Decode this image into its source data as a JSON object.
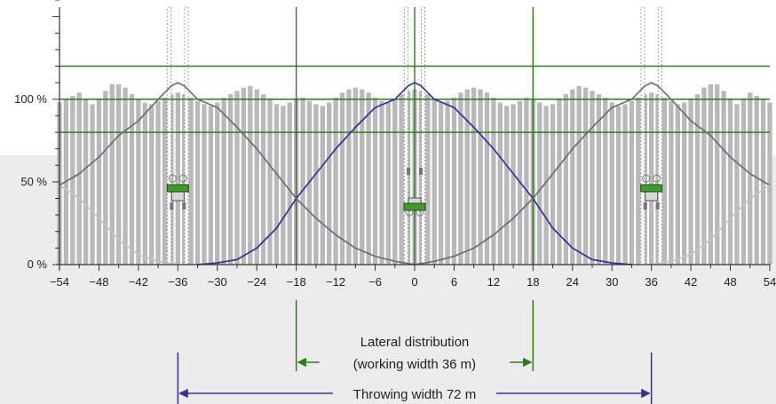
{
  "chart_data": {
    "type": "line",
    "title": "",
    "x_ticks": [
      -54,
      -48,
      -42,
      -36,
      -30,
      -24,
      -18,
      -12,
      -6,
      0,
      6,
      12,
      18,
      24,
      30,
      36,
      42,
      48,
      54
    ],
    "xlim": [
      -54,
      54
    ],
    "y_ticks": [
      {
        "value": 0,
        "label": "0 %"
      },
      {
        "value": 50,
        "label": "50 %"
      },
      {
        "value": 100,
        "label": "100 %"
      }
    ],
    "ylim": [
      0,
      160
    ],
    "grid": false,
    "reference_lines": {
      "x": [
        -18,
        0,
        18
      ],
      "y": [
        80,
        100,
        120
      ]
    },
    "tramlines_x": [
      -36,
      0,
      36
    ],
    "series": [
      {
        "role": "center-pass",
        "color": "#3b2f9a",
        "points": [
          [
            -33,
            0
          ],
          [
            -30,
            1
          ],
          [
            -27,
            3
          ],
          [
            -24,
            10
          ],
          [
            -21,
            22
          ],
          [
            -18,
            40
          ],
          [
            -15,
            55
          ],
          [
            -12,
            70
          ],
          [
            -9,
            83
          ],
          [
            -6,
            95
          ],
          [
            -3,
            100
          ],
          [
            -1,
            108
          ],
          [
            0,
            110
          ],
          [
            1,
            108
          ],
          [
            3,
            100
          ],
          [
            6,
            95
          ],
          [
            9,
            83
          ],
          [
            12,
            70
          ],
          [
            15,
            55
          ],
          [
            18,
            40
          ],
          [
            21,
            22
          ],
          [
            24,
            10
          ],
          [
            27,
            3
          ],
          [
            30,
            1
          ],
          [
            33,
            0
          ]
        ]
      },
      {
        "role": "left-pass",
        "color": "#6e6e72",
        "points": [
          [
            -54,
            48
          ],
          [
            -51,
            55
          ],
          [
            -48,
            65
          ],
          [
            -45,
            78
          ],
          [
            -42,
            87
          ],
          [
            -39,
            100
          ],
          [
            -37,
            108
          ],
          [
            -36,
            110
          ],
          [
            -35,
            108
          ],
          [
            -33,
            100
          ],
          [
            -30,
            95
          ],
          [
            -27,
            83
          ],
          [
            -24,
            70
          ],
          [
            -21,
            55
          ],
          [
            -18,
            40
          ],
          [
            -15,
            28
          ],
          [
            -12,
            18
          ],
          [
            -9,
            10
          ],
          [
            -6,
            5
          ],
          [
            -3,
            2
          ],
          [
            0,
            0
          ]
        ]
      },
      {
        "role": "right-pass",
        "color": "#6e6e72",
        "points": [
          [
            0,
            0
          ],
          [
            3,
            2
          ],
          [
            6,
            5
          ],
          [
            9,
            10
          ],
          [
            12,
            18
          ],
          [
            15,
            28
          ],
          [
            18,
            40
          ],
          [
            21,
            55
          ],
          [
            24,
            70
          ],
          [
            27,
            83
          ],
          [
            30,
            95
          ],
          [
            33,
            100
          ],
          [
            35,
            108
          ],
          [
            36,
            110
          ],
          [
            37,
            108
          ],
          [
            39,
            100
          ],
          [
            42,
            87
          ],
          [
            45,
            78
          ],
          [
            48,
            65
          ],
          [
            51,
            55
          ],
          [
            54,
            48
          ]
        ]
      },
      {
        "role": "outer-left-pass",
        "color": "#c4c4c6",
        "points": [
          [
            -54,
            48
          ],
          [
            -51,
            40
          ],
          [
            -48,
            28
          ],
          [
            -45,
            15
          ],
          [
            -42,
            6
          ],
          [
            -39,
            2
          ],
          [
            -36,
            0
          ]
        ]
      },
      {
        "role": "outer-right-pass",
        "color": "#c4c4c6",
        "points": [
          [
            36,
            0
          ],
          [
            39,
            2
          ],
          [
            42,
            6
          ],
          [
            45,
            15
          ],
          [
            48,
            28
          ],
          [
            51,
            40
          ],
          [
            54,
            48
          ]
        ]
      }
    ],
    "bars": {
      "color": "#b9b9bb",
      "bin_width": 1,
      "profile_x": [
        -54,
        -53,
        -52,
        -51,
        -50,
        -49,
        -48,
        -47,
        -46,
        -45,
        -44,
        -43,
        -42,
        -41,
        -40,
        -39,
        -38,
        -37,
        -36,
        -35,
        -34,
        -33,
        -32,
        -31,
        -30,
        -29,
        -28,
        -27,
        -26,
        -25,
        -24,
        -23,
        -22,
        -21,
        -20,
        -19,
        -18,
        -17,
        -16,
        -15,
        -14,
        -13,
        -12,
        -11,
        -10,
        -9,
        -8,
        -7,
        -6,
        -5,
        -4,
        -3,
        -2,
        -1,
        0,
        1,
        2,
        3,
        4,
        5,
        6,
        7,
        8,
        9,
        10,
        11,
        12,
        13,
        14,
        15,
        16,
        17,
        18,
        19,
        20,
        21,
        22,
        23,
        24,
        25,
        26,
        27,
        28,
        29,
        30,
        31,
        32,
        33,
        34,
        35,
        36,
        37,
        38,
        39,
        40,
        41,
        42,
        43,
        44,
        45,
        46,
        47,
        48,
        49,
        50,
        51,
        52,
        53,
        54
      ],
      "values": [
        98,
        100,
        102,
        104,
        100,
        97,
        100,
        105,
        109,
        109,
        107,
        103,
        100,
        98,
        97,
        99,
        101,
        103,
        104,
        103,
        101,
        99,
        97,
        96,
        98,
        101,
        103,
        105,
        107,
        108,
        106,
        103,
        100,
        97,
        96,
        98,
        100,
        101,
        99,
        97,
        96,
        98,
        101,
        104,
        106,
        107,
        106,
        104,
        101,
        99,
        98,
        100,
        103,
        105,
        106,
        105,
        103,
        100,
        98,
        99,
        101,
        104,
        106,
        107,
        106,
        104,
        101,
        98,
        96,
        97,
        99,
        101,
        100,
        98,
        96,
        97,
        100,
        103,
        106,
        108,
        107,
        105,
        103,
        101,
        98,
        96,
        97,
        99,
        101,
        103,
        104,
        103,
        101,
        99,
        97,
        98,
        100,
        103,
        107,
        109,
        109,
        105,
        100,
        97,
        100,
        104,
        102,
        100,
        98
      ]
    },
    "annotations": {
      "working_width_line1": "Lateral distribution",
      "working_width_line2": "(working width 36 m)",
      "working_width_span": [
        -18,
        18
      ],
      "throwing_width_label": "Throwing width 72 m",
      "throwing_width_span": [
        -36,
        36
      ]
    },
    "colors": {
      "reference": "#2e7d1c",
      "arrow_working": "#2e7d1c",
      "arrow_throwing": "#3b2f9a",
      "tractor": "#3f9b2b"
    }
  }
}
